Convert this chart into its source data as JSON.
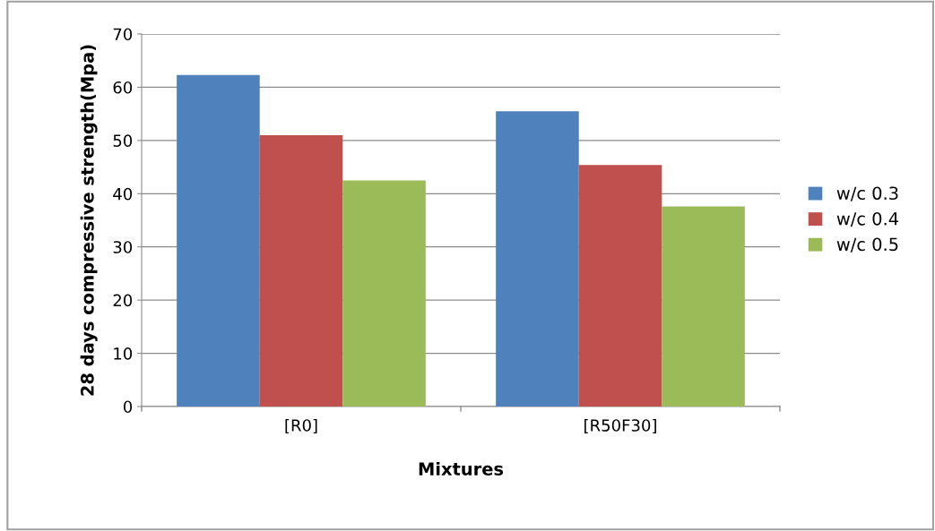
{
  "chart_data": {
    "type": "bar",
    "xlabel": "Mixtures",
    "ylabel": "28 days compressive strength(Mpa)",
    "categories": [
      "[R0]",
      "[R50F30]"
    ],
    "series": [
      {
        "name": "w/c 0.3",
        "color": "#4f81bd",
        "values": [
          62.3,
          55.5
        ]
      },
      {
        "name": "w/c 0.4",
        "color": "#c0504d",
        "values": [
          51.0,
          45.4
        ]
      },
      {
        "name": "w/c 0.5",
        "color": "#9bbb59",
        "values": [
          42.5,
          37.6
        ]
      }
    ],
    "ylim": [
      0,
      70
    ],
    "yticks": [
      0,
      10,
      20,
      30,
      40,
      50,
      60,
      70
    ],
    "grid": "y",
    "legend": "right"
  }
}
